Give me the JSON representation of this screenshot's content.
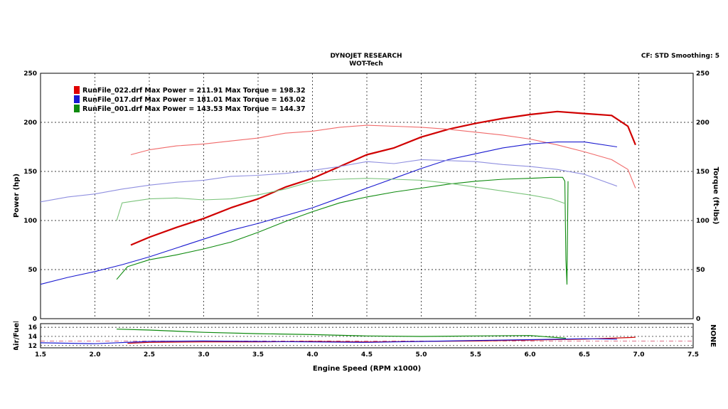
{
  "header": {
    "title": "DYNOJET RESEARCH",
    "subtitle": "WOT-Tech",
    "settings": "CF: STD  Smoothing: 5"
  },
  "legend": [
    {
      "text": "RunFile_022.drf Max Power = 211.91 Max Torque = 198.32",
      "color": "#e00000"
    },
    {
      "text": "RunFile_017.drf Max Power = 181.01 Max Torque = 163.02",
      "color": "#1a1ad0"
    },
    {
      "text": "RunFile_001.drf Max Power = 143.53 Max Torque = 144.37",
      "color": "#0e8a0e"
    }
  ],
  "sub_chart": {
    "left_label": "Air/Fuel",
    "right_label": "NONE",
    "ylim": [
      11.5,
      16.8
    ],
    "yticks": [
      "16",
      "14",
      "12"
    ]
  },
  "chart_data": {
    "type": "line",
    "title": "DYNOJET RESEARCH",
    "subtitle": "WOT-Tech",
    "xlabel": "Engine Speed (RPM x1000)",
    "ylabel": "Power (hp)",
    "ylabel_right": "Torque (ft-lbs)",
    "xlim": [
      1.5,
      7.5
    ],
    "ylim": [
      0,
      250
    ],
    "xticks": [
      "1.5",
      "2.0",
      "2.5",
      "3.0",
      "3.5",
      "4.0",
      "4.5",
      "5.0",
      "5.5",
      "6.0",
      "6.5",
      "7.0",
      "7.5"
    ],
    "yticks": [
      "0",
      "50",
      "100",
      "150",
      "200",
      "250"
    ],
    "yticks_right": [
      "0",
      "50",
      "100",
      "150",
      "200",
      "250"
    ],
    "grid": true,
    "series": [
      {
        "name": "RunFile_022.drf",
        "kind": "power",
        "color": "#d00000",
        "x": [
          2.33,
          2.5,
          2.75,
          3.0,
          3.25,
          3.5,
          3.75,
          4.0,
          4.25,
          4.5,
          4.75,
          5.0,
          5.25,
          5.5,
          5.75,
          6.0,
          6.25,
          6.5,
          6.75,
          6.9,
          6.97
        ],
        "y": [
          75,
          83,
          93,
          102,
          113,
          122,
          134,
          143,
          155,
          167,
          174,
          185,
          193,
          199,
          204,
          208,
          211,
          209,
          207,
          196,
          177
        ]
      },
      {
        "name": "RunFile_022.drf",
        "kind": "torque",
        "color": "#f06a6a",
        "x": [
          2.33,
          2.5,
          2.75,
          3.0,
          3.25,
          3.5,
          3.75,
          4.0,
          4.25,
          4.5,
          4.75,
          5.0,
          5.25,
          5.5,
          5.75,
          6.0,
          6.25,
          6.5,
          6.75,
          6.9,
          6.97
        ],
        "y": [
          167,
          172,
          176,
          178,
          181,
          184,
          189,
          191,
          195,
          197,
          196,
          195,
          193,
          190,
          187,
          183,
          177,
          170,
          162,
          152,
          133
        ]
      },
      {
        "name": "RunFile_017.drf",
        "kind": "power",
        "color": "#1a1ad0",
        "x": [
          1.5,
          1.75,
          2.0,
          2.25,
          2.5,
          2.75,
          3.0,
          3.25,
          3.5,
          3.75,
          4.0,
          4.25,
          4.5,
          4.75,
          5.0,
          5.25,
          5.5,
          5.75,
          6.0,
          6.25,
          6.5,
          6.8
        ],
        "y": [
          35,
          42,
          48,
          55,
          63,
          72,
          81,
          90,
          97,
          105,
          113,
          123,
          133,
          143,
          153,
          162,
          168,
          174,
          178,
          180,
          180,
          175
        ]
      },
      {
        "name": "RunFile_017.drf",
        "kind": "torque",
        "color": "#9090e0",
        "x": [
          1.5,
          1.75,
          2.0,
          2.25,
          2.5,
          2.75,
          3.0,
          3.25,
          3.5,
          3.75,
          4.0,
          4.25,
          4.5,
          4.75,
          5.0,
          5.25,
          5.5,
          5.75,
          6.0,
          6.25,
          6.5,
          6.8
        ],
        "y": [
          119,
          124,
          127,
          132,
          136,
          139,
          141,
          145,
          146,
          148,
          151,
          155,
          160,
          158,
          162,
          161,
          160,
          157,
          155,
          152,
          147,
          135
        ]
      },
      {
        "name": "RunFile_001.drf",
        "kind": "power",
        "color": "#0e8a0e",
        "x": [
          2.2,
          2.3,
          2.5,
          2.75,
          3.0,
          3.25,
          3.5,
          3.75,
          4.0,
          4.25,
          4.5,
          4.75,
          5.0,
          5.25,
          5.5,
          5.75,
          6.0,
          6.2,
          6.3,
          6.32,
          6.33,
          6.34,
          6.35
        ],
        "y": [
          40,
          53,
          60,
          65,
          71,
          78,
          88,
          99,
          109,
          118,
          124,
          129,
          133,
          137,
          140,
          142,
          143,
          144,
          144,
          140,
          60,
          35,
          140
        ]
      },
      {
        "name": "RunFile_001.drf",
        "kind": "torque",
        "color": "#7cc47c",
        "x": [
          2.2,
          2.25,
          2.5,
          2.75,
          3.0,
          3.25,
          3.5,
          3.75,
          4.0,
          4.25,
          4.5,
          4.75,
          5.0,
          5.25,
          5.5,
          5.75,
          6.0,
          6.2,
          6.33
        ],
        "y": [
          100,
          118,
          122,
          123,
          121,
          122,
          126,
          132,
          140,
          142,
          143,
          142,
          141,
          138,
          134,
          130,
          126,
          122,
          117
        ]
      }
    ],
    "afr_series": [
      {
        "name": "RunFile_022.drf",
        "color": "#d00000",
        "x": [
          2.3,
          2.5,
          3.0,
          3.5,
          4.0,
          4.5,
          5.0,
          5.5,
          6.0,
          6.5,
          6.97
        ],
        "y": [
          12.5,
          12.7,
          12.8,
          12.8,
          12.9,
          12.8,
          12.9,
          13.0,
          13.2,
          13.4,
          13.8
        ]
      },
      {
        "name": "RunFile_017.drf",
        "color": "#1a1ad0",
        "x": [
          1.5,
          2.0,
          2.5,
          3.0,
          3.5,
          4.0,
          4.5,
          5.0,
          5.5,
          6.0,
          6.5,
          6.8
        ],
        "y": [
          12.6,
          12.4,
          12.9,
          13.0,
          12.9,
          12.8,
          12.7,
          12.9,
          13.1,
          13.3,
          13.5,
          13.4
        ]
      },
      {
        "name": "RunFile_001.drf",
        "color": "#0e8a0e",
        "x": [
          2.2,
          2.5,
          3.0,
          3.5,
          4.0,
          4.5,
          5.0,
          5.5,
          6.0,
          6.33
        ],
        "y": [
          15.6,
          15.4,
          14.9,
          14.6,
          14.4,
          14.1,
          14.0,
          14.1,
          14.2,
          13.6
        ]
      }
    ]
  }
}
